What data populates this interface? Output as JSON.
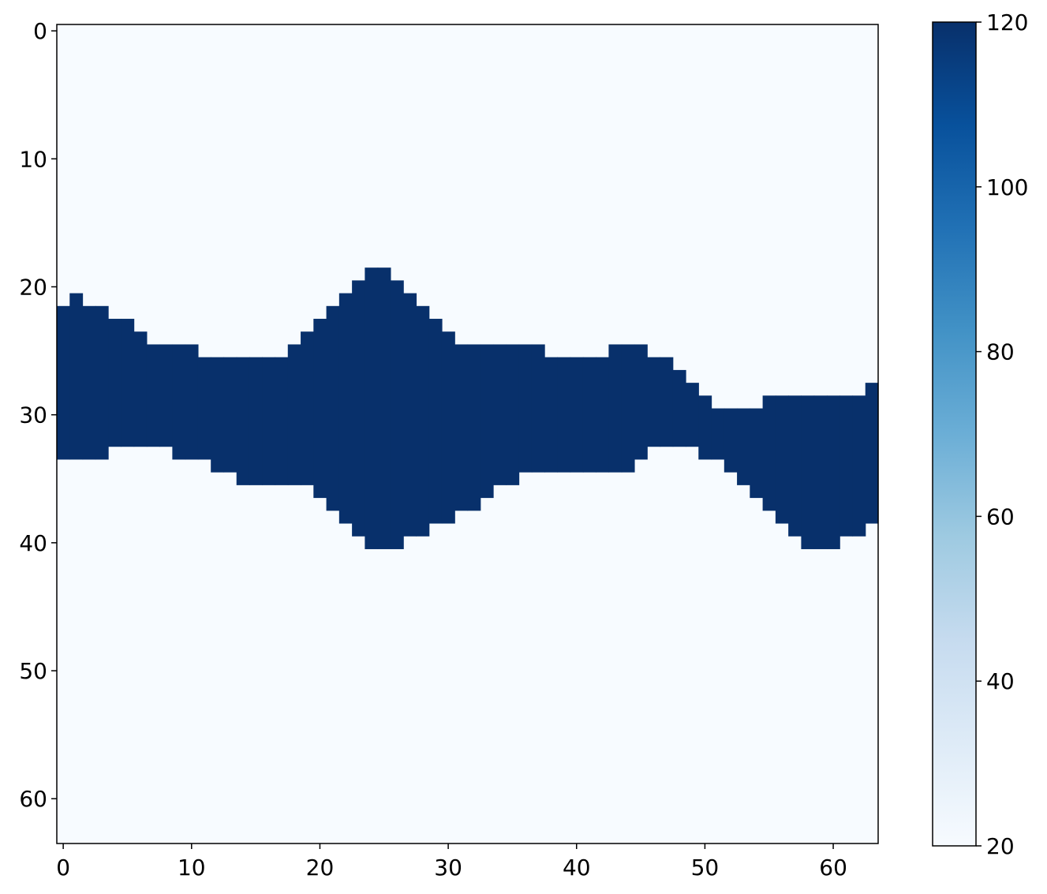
{
  "chart_data": {
    "type": "heatmap",
    "title": "",
    "xlabel": "",
    "ylabel": "",
    "grid_size": [
      64,
      64
    ],
    "xlim": [
      -0.5,
      63.5
    ],
    "ylim": [
      63.5,
      -0.5
    ],
    "x_ticks": [
      "0",
      "10",
      "20",
      "30",
      "40",
      "50",
      "60"
    ],
    "y_ticks": [
      "0",
      "10",
      "20",
      "30",
      "40",
      "50",
      "60"
    ],
    "grid": false,
    "colormap": "Blues",
    "colorbar": {
      "min": 20,
      "max": 120,
      "ticks": [
        "20",
        "40",
        "60",
        "80",
        "100",
        "120"
      ],
      "placement": "right"
    },
    "background_value": 20,
    "band_value": 120,
    "band_description": "cells with value 120 occupy rows band_top[col] through band_bottom[col] (inclusive) in each column; all other cells have value 20",
    "band_top": [
      22,
      21,
      22,
      22,
      23,
      23,
      24,
      25,
      25,
      25,
      25,
      26,
      26,
      26,
      26,
      26,
      26,
      26,
      25,
      24,
      23,
      22,
      21,
      20,
      19,
      19,
      20,
      21,
      22,
      23,
      24,
      25,
      25,
      25,
      25,
      25,
      25,
      25,
      26,
      26,
      26,
      26,
      26,
      25,
      25,
      25,
      26,
      26,
      27,
      28,
      29,
      30,
      30,
      30,
      30,
      29,
      29,
      29,
      29,
      29,
      29,
      29,
      29,
      28
    ],
    "band_bottom": [
      33,
      33,
      33,
      33,
      32,
      32,
      32,
      32,
      32,
      33,
      33,
      33,
      34,
      34,
      35,
      35,
      35,
      35,
      35,
      35,
      36,
      37,
      38,
      39,
      40,
      40,
      40,
      39,
      39,
      38,
      38,
      37,
      37,
      36,
      35,
      35,
      34,
      34,
      34,
      34,
      34,
      34,
      34,
      34,
      34,
      33,
      32,
      32,
      32,
      32,
      33,
      33,
      34,
      35,
      36,
      37,
      38,
      39,
      40,
      40,
      40,
      39,
      39,
      38
    ],
    "colors": {
      "low": "#f7fbff",
      "high": "#08306b"
    }
  }
}
